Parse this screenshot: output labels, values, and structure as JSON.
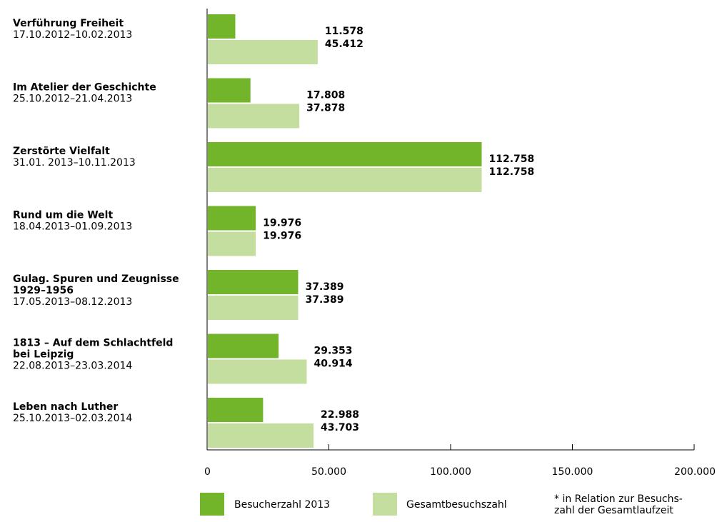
{
  "chart_data": {
    "type": "bar",
    "orientation": "horizontal",
    "categories": [
      {
        "title": [
          "Verführung Freiheit"
        ],
        "date": "17.10.2012–10.02.2013"
      },
      {
        "title": [
          "Im Atelier der Geschichte"
        ],
        "date": "25.10.2012–21.04.2013"
      },
      {
        "title": [
          "Zerstörte Vielfalt"
        ],
        "date": "31.01. 2013–10.11.2013"
      },
      {
        "title": [
          "Rund um die Welt"
        ],
        "date": "18.04.2013–01.09.2013"
      },
      {
        "title": [
          "Gulag. Spuren und Zeugnisse",
          "1929–1956"
        ],
        "date": "17.05.2013–08.12.2013"
      },
      {
        "title": [
          "1813 – Auf dem Schlachtfeld",
          "bei Leipzig"
        ],
        "date": "22.08.2013–23.03.2014"
      },
      {
        "title": [
          "Leben nach Luther"
        ],
        "date": "25.10.2013–02.03.2014"
      }
    ],
    "series": [
      {
        "name": "Besucherzahl 2013",
        "color": "#72b52b",
        "values": [
          11578,
          17808,
          112758,
          19976,
          37389,
          29353,
          22988
        ],
        "labels": [
          "11.578",
          "17.808",
          "112.758",
          "19.976",
          "37.389",
          "29.353",
          "22.988"
        ]
      },
      {
        "name": "Gesamtbesuchszahl",
        "color": "#c4de9f",
        "values": [
          45412,
          37878,
          112758,
          19976,
          37389,
          40914,
          43703
        ],
        "labels": [
          "45.412",
          "37.878",
          "112.758",
          "19.976",
          "37.389",
          "40.914",
          "43.703"
        ]
      }
    ],
    "xlim": [
      0,
      200000
    ],
    "xticks": [
      {
        "value": 0,
        "label": "0"
      },
      {
        "value": 50000,
        "label": "50.000"
      },
      {
        "value": 100000,
        "label": "100.000"
      },
      {
        "value": 150000,
        "label": "150.000"
      },
      {
        "value": 200000,
        "label": "200.000"
      }
    ],
    "legend_placement": "bottom",
    "note": [
      "* in Relation zur Besuchs-",
      "zahl der Gesamtlaufzeit"
    ],
    "grid": false
  }
}
